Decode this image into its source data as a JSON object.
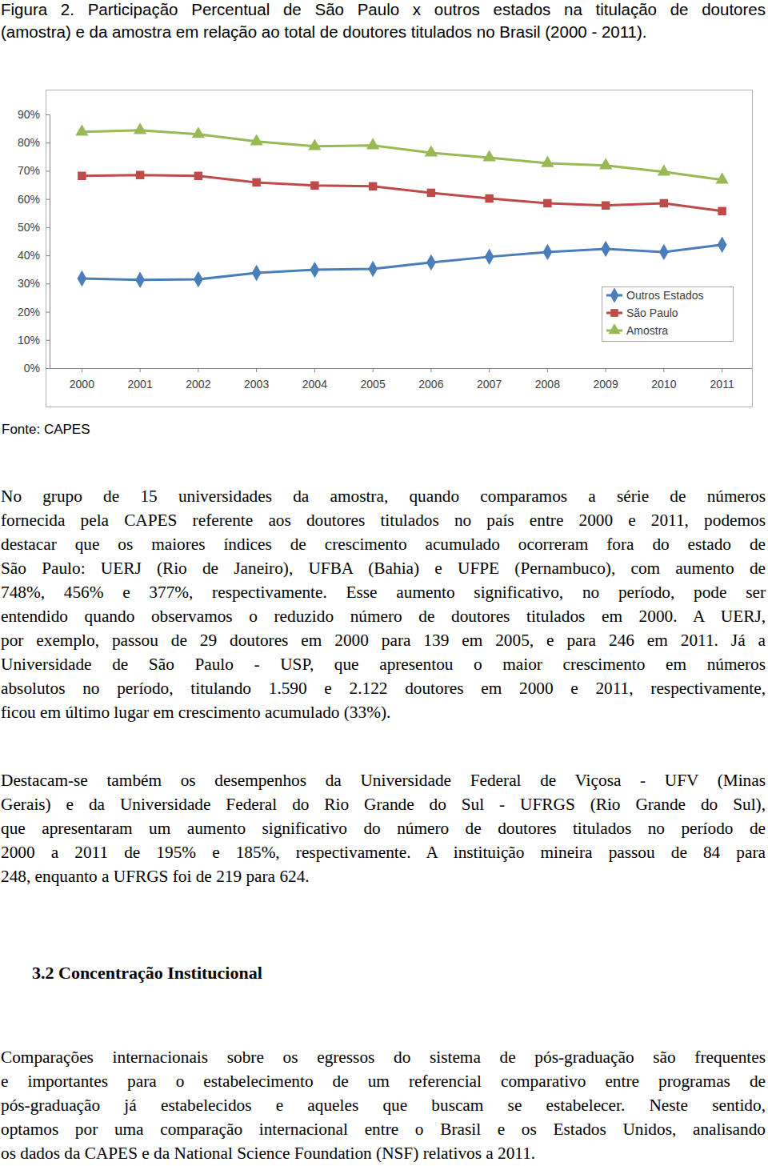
{
  "caption": [
    "Figura 2. Participação Percentual de São Paulo x outros estados na titulação de doutores",
    "(amostra) e da amostra em relação ao total de doutores titulados no Brasil (2000 - 2011)."
  ],
  "chart_data": {
    "type": "line",
    "categories": [
      "2000",
      "2001",
      "2002",
      "2003",
      "2004",
      "2005",
      "2006",
      "2007",
      "2008",
      "2009",
      "2010",
      "2011"
    ],
    "series": [
      {
        "name": "Outros Estados",
        "color": "#4a7ebb",
        "marker": "diamond",
        "values": [
          31.8,
          31.3,
          31.5,
          33.8,
          34.9,
          35.2,
          37.5,
          39.5,
          41.2,
          42.3,
          41.2,
          43.8
        ]
      },
      {
        "name": "São Paulo",
        "color": "#be4b48",
        "marker": "square",
        "values": [
          68.2,
          68.5,
          68.2,
          65.9,
          64.8,
          64.5,
          62.2,
          60.2,
          58.5,
          57.7,
          58.5,
          55.7
        ]
      },
      {
        "name": "Amostra",
        "color": "#98b954",
        "marker": "triangle",
        "values": [
          83.8,
          84.4,
          83.0,
          80.4,
          78.7,
          79.0,
          76.4,
          74.7,
          72.7,
          71.9,
          69.6,
          66.8
        ]
      }
    ],
    "ylim": [
      0,
      90
    ],
    "yticks": [
      {
        "value": 0,
        "label": "0%"
      },
      {
        "value": 10,
        "label": "10%"
      },
      {
        "value": 20,
        "label": "20%"
      },
      {
        "value": 30,
        "label": "30%"
      },
      {
        "value": 40,
        "label": "40%"
      },
      {
        "value": 50,
        "label": "50%"
      },
      {
        "value": 60,
        "label": "60%"
      },
      {
        "value": 70,
        "label": "70%"
      },
      {
        "value": 80,
        "label": "80%"
      },
      {
        "value": 90,
        "label": "90%"
      }
    ],
    "grid": false,
    "legend": "right"
  },
  "source": "Fonte: CAPES",
  "paragraphs": [
    [
      "No grupo de 15 universidades da amostra, quando comparamos a série de números",
      "fornecida pela CAPES referente aos doutores titulados no país entre 2000 e 2011, podemos",
      "destacar que os maiores índices de crescimento acumulado ocorreram fora do estado de",
      "São Paulo: UERJ (Rio de Janeiro), UFBA (Bahia) e UFPE (Pernambuco), com aumento de",
      "748%, 456% e 377%, respectivamente. Esse aumento significativo, no período, pode ser",
      "entendido quando observamos o reduzido número de doutores titulados em 2000. A UERJ,",
      "por exemplo, passou de 29 doutores em 2000 para 139 em 2005, e para 246 em 2011. Já a",
      "Universidade de São Paulo - USP, que apresentou o maior crescimento em números",
      "absolutos no período, titulando 1.590 e 2.122 doutores em 2000 e 2011, respectivamente,",
      "ficou em último lugar em crescimento acumulado (33%)."
    ],
    [
      "Destacam-se também os desempenhos da Universidade Federal de Viçosa - UFV (Minas",
      "Gerais) e da Universidade Federal do Rio Grande do Sul - UFRGS (Rio Grande do Sul),",
      "que apresentaram um aumento significativo do número de doutores titulados no período de",
      "2000 a 2011 de 195% e 185%, respectivamente. A instituição mineira passou de 84 para",
      "248, enquanto a UFRGS foi de 219 para 624."
    ],
    [
      "Comparações internacionais sobre os egressos do sistema de pós-graduação são frequentes",
      "e importantes para o estabelecimento de um referencial comparativo entre programas de",
      "pós-graduação já estabelecidos e aqueles que buscam se estabelecer.  Neste sentido,",
      "optamos por uma comparação internacional entre o Brasil e os Estados Unidos, analisando",
      "os dados da CAPES e da National Science Foundation (NSF) relativos a 2011."
    ]
  ],
  "heading": "3.2 Concentração Institucional"
}
